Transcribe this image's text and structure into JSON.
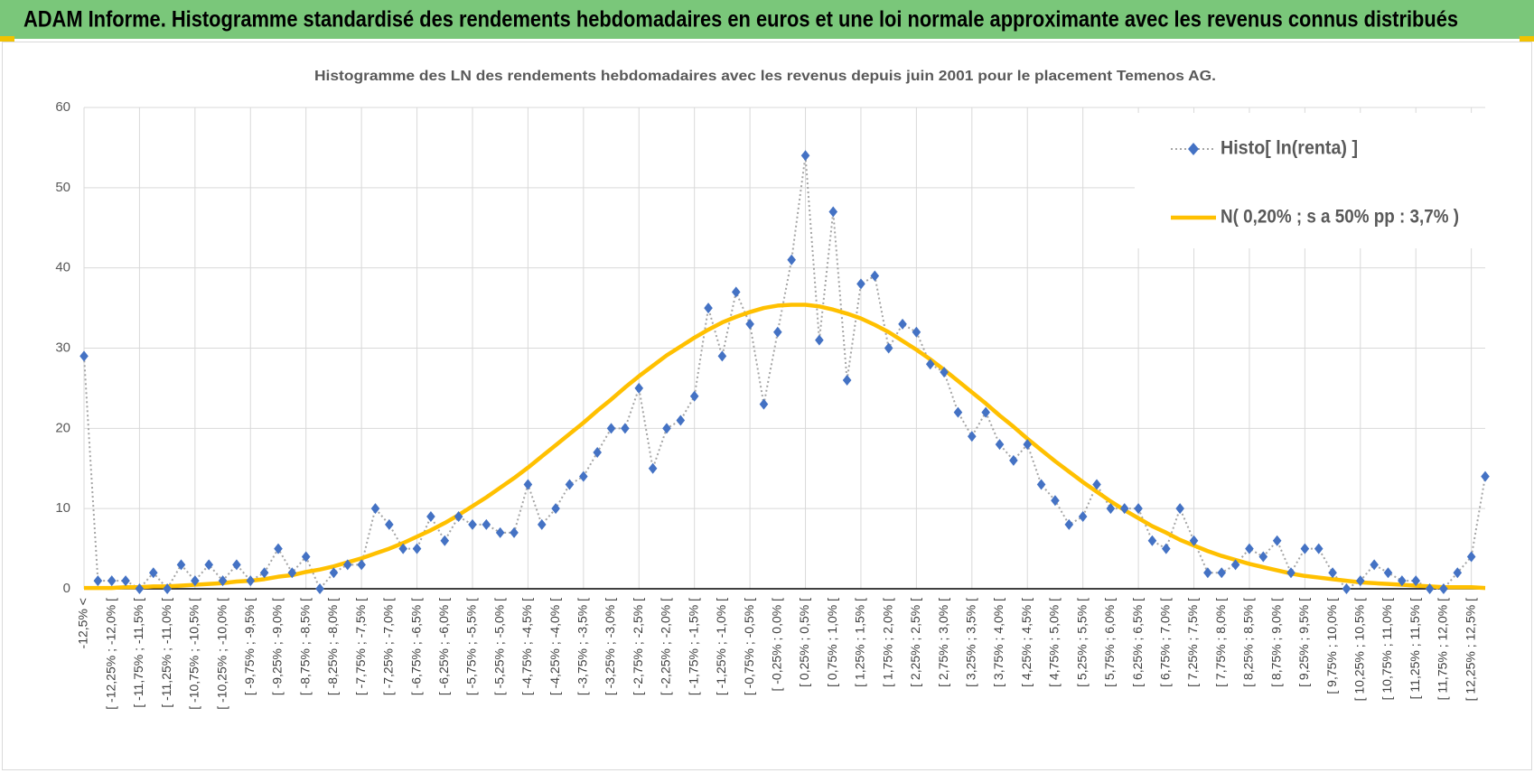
{
  "header": {
    "title": "ADAM Informe. Histogramme standardisé des rendements hebdomadaires en euros et une loi normale approximante avec les revenus connus distribués"
  },
  "chart_data": {
    "type": "line",
    "title": "Histogramme  des LN des rendements hebdomadaires avec les revenus depuis juin 2001 pour le placement Temenos AG.",
    "categories": [
      "-12,5% <",
      null,
      "[ -12,25% ; -12,0% [",
      null,
      "[ -11,75% ; -11,5% [",
      null,
      "[ -11,25% ; -11,0% [",
      null,
      "[ -10,75% ; -10,5% [",
      null,
      "[ -10,25% ; -10,0% [",
      null,
      "[ -9,75% ; -9,5% [",
      null,
      "[ -9,25% ; -9,0% [",
      null,
      "[ -8,75% ; -8,5% [",
      null,
      "[ -8,25% ; -8,0% [",
      null,
      "[ -7,75% ; -7,5% [",
      null,
      "[ -7,25% ; -7,0% [",
      null,
      "[ -6,75% ; -6,5% [",
      null,
      "[ -6,25% ; -6,0% [",
      null,
      "[ -5,75% ; -5,5% [",
      null,
      "[ -5,25% ; -5,0% [",
      null,
      "[ -4,75% ; -4,5% [",
      null,
      "[ -4,25% ; -4,0% [",
      null,
      "[ -3,75% ; -3,5% [",
      null,
      "[ -3,25% ; -3,0% [",
      null,
      "[ -2,75% ; -2,5% [",
      null,
      "[ -2,25% ; -2,0% [",
      null,
      "[ -1,75% ; -1,5% [",
      null,
      "[ -1,25% ; -1,0% [",
      null,
      "[ -0,75% ; -0,5% [",
      null,
      "[ -0,25% ; 0,0% [",
      null,
      "[ 0,25% ; 0,5% [",
      null,
      "[ 0,75% ; 1,0% [",
      null,
      "[ 1,25% ; 1,5% [",
      null,
      "[ 1,75% ; 2,0% [",
      null,
      "[ 2,25% ; 2,5% [",
      null,
      "[ 2,75% ; 3,0% [",
      null,
      "[ 3,25% ; 3,5% [",
      null,
      "[ 3,75% ; 4,0% [",
      null,
      "[ 4,25% ; 4,5% [",
      null,
      "[ 4,75% ; 5,0% [",
      null,
      "[ 5,25% ; 5,5% [",
      null,
      "[ 5,75% ; 6,0% [",
      null,
      "[ 6,25% ; 6,5% [",
      null,
      "[ 6,75% ; 7,0% [",
      null,
      "[ 7,25% ; 7,5% [",
      null,
      "[ 7,75% ; 8,0% [",
      null,
      "[ 8,25% ; 8,5% [",
      null,
      "[ 8,75% ; 9,0% [",
      null,
      "[ 9,25% ; 9,5% [",
      null,
      "[ 9,75% ; 10,0% [",
      null,
      "[ 10,25% ; 10,5% [",
      null,
      "[ 10,75% ; 11,0% [",
      null,
      "[ 11,25% ; 11,5% [",
      null,
      "[ 11,75% ; 12,0% [",
      null,
      "[ 12,25% ; 12,5% [",
      null
    ],
    "series": [
      {
        "name": "Histo[ ln(renta) ]",
        "color": "#4472c4",
        "line_color": "#a5a5a5",
        "values": [
          29,
          1,
          1,
          1,
          0,
          2,
          0,
          3,
          1,
          3,
          1,
          3,
          1,
          2,
          5,
          2,
          4,
          0,
          2,
          3,
          3,
          10,
          8,
          5,
          5,
          9,
          6,
          9,
          8,
          8,
          7,
          7,
          13,
          8,
          10,
          13,
          14,
          17,
          20,
          20,
          25,
          15,
          20,
          21,
          24,
          35,
          29,
          37,
          33,
          23,
          32,
          41,
          54,
          31,
          47,
          26,
          38,
          39,
          30,
          33,
          32,
          28,
          27,
          22,
          19,
          22,
          18,
          16,
          18,
          13,
          11,
          8,
          9,
          13,
          10,
          10,
          10,
          6,
          5,
          10,
          6,
          2,
          2,
          3,
          5,
          4,
          6,
          2,
          5,
          5,
          2,
          0,
          1,
          3,
          2,
          1,
          1,
          0,
          0,
          2,
          4,
          14
        ]
      },
      {
        "name": "N( 0,20% ; s a 50% pp : 3,7% )",
        "color": "#ffc000",
        "values": [
          0.1,
          0.1,
          0.1,
          0.2,
          0.2,
          0.3,
          0.3,
          0.4,
          0.5,
          0.6,
          0.7,
          0.9,
          1.0,
          1.2,
          1.5,
          1.7,
          2.1,
          2.4,
          2.8,
          3.3,
          3.8,
          4.4,
          5.0,
          5.7,
          6.5,
          7.3,
          8.2,
          9.2,
          10.3,
          11.4,
          12.6,
          13.8,
          15.1,
          16.5,
          17.9,
          19.3,
          20.7,
          22.2,
          23.6,
          25.1,
          26.5,
          27.8,
          29.1,
          30.2,
          31.3,
          32.3,
          33.2,
          33.9,
          34.5,
          35.0,
          35.3,
          35.4,
          35.4,
          35.2,
          34.8,
          34.3,
          33.7,
          32.9,
          32.0,
          30.9,
          29.8,
          28.6,
          27.3,
          25.9,
          24.5,
          23.1,
          21.6,
          20.2,
          18.7,
          17.3,
          15.9,
          14.6,
          13.3,
          12.1,
          10.9,
          9.8,
          8.8,
          7.8,
          7.0,
          6.1,
          5.4,
          4.7,
          4.1,
          3.6,
          3.1,
          2.7,
          2.3,
          1.9,
          1.6,
          1.4,
          1.2,
          1.0,
          0.8,
          0.7,
          0.6,
          0.5,
          0.4,
          0.3,
          0.2,
          0.2,
          0.2,
          0.1
        ]
      }
    ],
    "ylim": [
      0,
      60
    ],
    "yticks": [
      0,
      10,
      20,
      30,
      40,
      50,
      60
    ],
    "grid": true,
    "legend": "top-right"
  }
}
